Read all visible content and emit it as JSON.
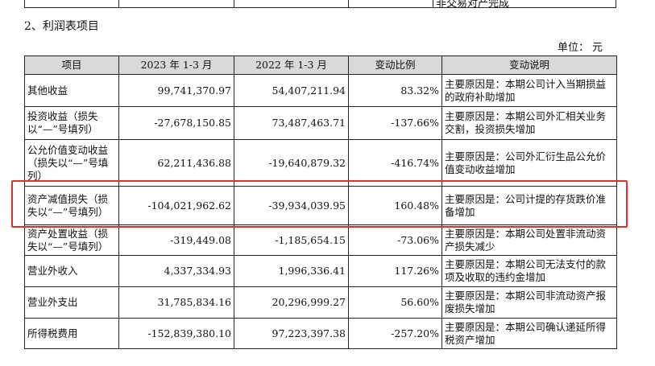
{
  "top_cutoff_text": "非交易对产完成",
  "section_title": "2、利润表项目",
  "unit": {
    "label": "单位：",
    "value": "元"
  },
  "headers": [
    "项目",
    "2023 年 1-3 月",
    "2022 年 1-3 月",
    "变动比例",
    "变动说明"
  ],
  "rows": [
    {
      "item": "其他收益",
      "y2023": "99,741,370.97",
      "y2022": "54,407,211.94",
      "change": "83.32%",
      "note": "主要原因是：本期公司计入当期损益的政府补助增加"
    },
    {
      "item": "投资收益（损失以“—”号填列）",
      "y2023": "-27,678,150.85",
      "y2022": "73,487,463.71",
      "change": "-137.66%",
      "note": "主要原因是：本期公司外汇相关业务交割，投资损失增加"
    },
    {
      "item": "公允价值变动收益（损失以“—”号填列）",
      "y2023": "62,211,436.88",
      "y2022": "-19,640,879.32",
      "change": "-416.74%",
      "note": "主要原因是：公司外汇衍生品公允价值变动收益增加"
    },
    {
      "item": "资产减值损失（损失以“—”号填列）",
      "y2023": "-104,021,962.62",
      "y2022": "-39,934,039.95",
      "change": "160.48%",
      "note": "主要原因是：公司计提的存货跌价准备增加"
    },
    {
      "item": "资产处置收益（损失以“—”号填列）",
      "y2023": "-319,449.08",
      "y2022": "-1,185,654.15",
      "change": "-73.06%",
      "note": "主要原因是：本期公司处置非流动资产损失减少"
    },
    {
      "item": "营业外收入",
      "y2023": "4,337,334.93",
      "y2022": "1,996,336.41",
      "change": "117.26%",
      "note": "主要原因是：本期公司无法支付的款项及收取的违约金增加"
    },
    {
      "item": "营业外支出",
      "y2023": "31,785,834.16",
      "y2022": "20,296,999.27",
      "change": "56.60%",
      "note": "主要原因是：本期公司非流动资产报废损失增加"
    },
    {
      "item": "所得税费用",
      "y2023": "-152,839,380.10",
      "y2022": "97,223,397.38",
      "change": "-257.20%",
      "note": "主要原因是：本期公司确认递延所得税资产增加"
    }
  ],
  "highlight_color": "#e0302a"
}
